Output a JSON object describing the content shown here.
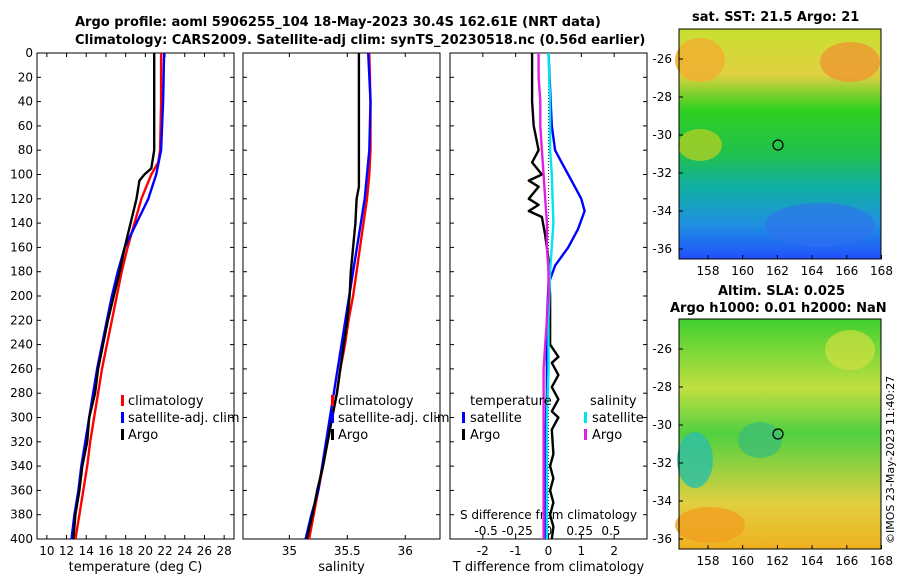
{
  "header": {
    "line1": "Argo profile: aoml 5906255_104 18-May-2023 30.4S 162.61E (NRT data)",
    "line2": "Climatology: CARS2009. Satellite-adj clim: synTS_20230518.nc (0.56d earlier)"
  },
  "maps": {
    "sst_title": "sat. SST: 21.5 Argo: 21",
    "sla_title1": "Altim. SLA: 0.025",
    "sla_title2": "Argo h1000: 0.01 h2000: NaN",
    "lat_ticks": [
      "-26",
      "-28",
      "-30",
      "-32",
      "-34",
      "-36"
    ],
    "lon_ticks": [
      "158",
      "160",
      "162",
      "164",
      "166",
      "168"
    ]
  },
  "copyright": "©IMOS 23-May-2023 11:40:27",
  "chart_data": [
    {
      "type": "line",
      "name": "temperature",
      "xlabel": "temperature (deg C)",
      "ylabel": "",
      "xlim": [
        9,
        29
      ],
      "ylim": [
        400,
        0
      ],
      "xticks": [
        10,
        12,
        14,
        16,
        18,
        20,
        22,
        24,
        26,
        28
      ],
      "yticks": [
        0,
        20,
        40,
        60,
        80,
        100,
        120,
        140,
        160,
        180,
        200,
        220,
        240,
        260,
        280,
        300,
        320,
        340,
        360,
        380,
        400
      ],
      "legend": [
        "climatology",
        "satellite-adj. clim",
        "Argo"
      ],
      "legend_colors": [
        "#ff0000",
        "#0000ff",
        "#000000"
      ],
      "series": [
        {
          "name": "climatology",
          "color": "#ff0000",
          "points": [
            [
              21.6,
              0
            ],
            [
              21.6,
              40
            ],
            [
              21.5,
              80
            ],
            [
              21.3,
              90
            ],
            [
              20.6,
              100
            ],
            [
              19.6,
              120
            ],
            [
              18.9,
              140
            ],
            [
              18.2,
              160
            ],
            [
              17.6,
              180
            ],
            [
              17.1,
              200
            ],
            [
              16.6,
              220
            ],
            [
              16.1,
              240
            ],
            [
              15.6,
              260
            ],
            [
              15.2,
              280
            ],
            [
              14.8,
              300
            ],
            [
              14.4,
              320
            ],
            [
              14.1,
              340
            ],
            [
              13.7,
              360
            ],
            [
              13.3,
              380
            ],
            [
              12.9,
              400
            ]
          ]
        },
        {
          "name": "satellite-adj. clim",
          "color": "#0000ff",
          "points": [
            [
              21.9,
              0
            ],
            [
              21.8,
              40
            ],
            [
              21.6,
              80
            ],
            [
              21.1,
              100
            ],
            [
              20.3,
              120
            ],
            [
              19.1,
              140
            ],
            [
              17.9,
              160
            ],
            [
              17.2,
              180
            ],
            [
              16.6,
              200
            ],
            [
              16.1,
              220
            ],
            [
              15.6,
              240
            ],
            [
              15.1,
              260
            ],
            [
              14.7,
              280
            ],
            [
              14.3,
              300
            ],
            [
              13.9,
              320
            ],
            [
              13.5,
              340
            ],
            [
              13.2,
              360
            ],
            [
              12.8,
              380
            ],
            [
              12.5,
              400
            ]
          ]
        },
        {
          "name": "Argo",
          "color": "#000000",
          "points": [
            [
              20.9,
              0
            ],
            [
              20.9,
              40
            ],
            [
              20.9,
              80
            ],
            [
              20.6,
              95
            ],
            [
              19.9,
              100
            ],
            [
              19.4,
              105
            ],
            [
              19.1,
              120
            ],
            [
              18.5,
              140
            ],
            [
              17.9,
              160
            ],
            [
              17.4,
              180
            ],
            [
              16.8,
              200
            ],
            [
              16.2,
              220
            ],
            [
              15.7,
              240
            ],
            [
              15.2,
              260
            ],
            [
              14.9,
              280
            ],
            [
              14.3,
              300
            ],
            [
              14.1,
              320
            ],
            [
              13.6,
              340
            ],
            [
              13.3,
              360
            ],
            [
              12.9,
              380
            ],
            [
              12.7,
              400
            ]
          ]
        }
      ]
    },
    {
      "type": "line",
      "name": "salinity",
      "xlabel": "salinity",
      "ylabel": "",
      "xlim": [
        34.6,
        36.3
      ],
      "ylim": [
        400,
        0
      ],
      "xticks": [
        35,
        35.5,
        36
      ],
      "legend": [
        "climatology",
        "satellite-adj. clim",
        "Argo"
      ],
      "legend_colors": [
        "#ff0000",
        "#0000ff",
        "#000000"
      ],
      "series": [
        {
          "name": "climatology",
          "color": "#ff0000",
          "points": [
            [
              35.69,
              0
            ],
            [
              35.7,
              40
            ],
            [
              35.7,
              80
            ],
            [
              35.69,
              100
            ],
            [
              35.67,
              120
            ],
            [
              35.64,
              140
            ],
            [
              35.61,
              160
            ],
            [
              35.58,
              180
            ],
            [
              35.55,
              200
            ],
            [
              35.51,
              220
            ],
            [
              35.48,
              240
            ],
            [
              35.44,
              260
            ],
            [
              35.41,
              280
            ],
            [
              35.37,
              300
            ],
            [
              35.33,
              320
            ],
            [
              35.29,
              340
            ],
            [
              35.25,
              360
            ],
            [
              35.21,
              380
            ],
            [
              35.17,
              400
            ]
          ]
        },
        {
          "name": "satellite-adj. clim",
          "color": "#0000ff",
          "points": [
            [
              35.68,
              0
            ],
            [
              35.7,
              40
            ],
            [
              35.69,
              80
            ],
            [
              35.65,
              120
            ],
            [
              35.6,
              150
            ],
            [
              35.55,
              180
            ],
            [
              35.5,
              210
            ],
            [
              35.45,
              240
            ],
            [
              35.4,
              270
            ],
            [
              35.35,
              300
            ],
            [
              35.3,
              330
            ],
            [
              35.25,
              360
            ],
            [
              35.19,
              380
            ],
            [
              35.14,
              400
            ]
          ]
        },
        {
          "name": "Argo",
          "color": "#000000",
          "points": [
            [
              35.6,
              0
            ],
            [
              35.6,
              40
            ],
            [
              35.6,
              80
            ],
            [
              35.6,
              110
            ],
            [
              35.58,
              120
            ],
            [
              35.57,
              140
            ],
            [
              35.55,
              160
            ],
            [
              35.53,
              180
            ],
            [
              35.52,
              200
            ],
            [
              35.5,
              220
            ],
            [
              35.47,
              240
            ],
            [
              35.44,
              260
            ],
            [
              35.41,
              280
            ],
            [
              35.37,
              300
            ],
            [
              35.33,
              320
            ],
            [
              35.29,
              340
            ],
            [
              35.24,
              360
            ],
            [
              35.2,
              380
            ],
            [
              35.15,
              400
            ]
          ]
        }
      ]
    },
    {
      "type": "line",
      "name": "differences",
      "xlabel": "T difference from climatology",
      "top_label": "S difference from climatology",
      "xlim": [
        -3,
        3
      ],
      "ylim": [
        400,
        0
      ],
      "xticks": [
        "-2",
        "-1",
        "0",
        "1",
        "2"
      ],
      "xtick_values": [
        -2,
        -1,
        0,
        1,
        2
      ],
      "sticks": [
        "-0.5",
        "-0.25",
        "0",
        "0.25",
        "0.5"
      ],
      "stick_values": [
        -1.9,
        -0.95,
        0,
        0.95,
        1.9
      ],
      "legend_left_title": "temperature",
      "legend_right_title": "salinity",
      "legend_left": [
        "satellite",
        "Argo"
      ],
      "legend_right": [
        "satellite",
        "Argo"
      ],
      "legend_colors": [
        "#0000ff",
        "#000000",
        "#00e5ee",
        "#e020e0"
      ],
      "series": [
        {
          "name": "T satellite",
          "color": "#0000ff",
          "points": [
            [
              0,
              0
            ],
            [
              0.1,
              60
            ],
            [
              0.2,
              80
            ],
            [
              0.4,
              90
            ],
            [
              0.6,
              100
            ],
            [
              0.8,
              110
            ],
            [
              1.0,
              120
            ],
            [
              1.1,
              130
            ],
            [
              0.9,
              145
            ],
            [
              0.6,
              160
            ],
            [
              0.2,
              175
            ],
            [
              0,
              190
            ],
            [
              -0.05,
              220
            ],
            [
              -0.05,
              280
            ],
            [
              -0.1,
              320
            ],
            [
              -0.1,
              360
            ],
            [
              -0.1,
              400
            ]
          ]
        },
        {
          "name": "T Argo",
          "color": "#000000",
          "points": [
            [
              -0.5,
              0
            ],
            [
              -0.5,
              40
            ],
            [
              -0.45,
              60
            ],
            [
              -0.3,
              80
            ],
            [
              -0.5,
              90
            ],
            [
              -0.2,
              100
            ],
            [
              -0.6,
              105
            ],
            [
              -0.3,
              110
            ],
            [
              -0.6,
              120
            ],
            [
              -0.3,
              125
            ],
            [
              -0.6,
              130
            ],
            [
              -0.2,
              135
            ],
            [
              -0.1,
              150
            ],
            [
              0,
              170
            ],
            [
              0.05,
              200
            ],
            [
              0.05,
              240
            ],
            [
              0.3,
              250
            ],
            [
              0.1,
              255
            ],
            [
              0.3,
              265
            ],
            [
              0.1,
              275
            ],
            [
              0.3,
              285
            ],
            [
              0.1,
              295
            ],
            [
              0.3,
              300
            ],
            [
              0.1,
              310
            ],
            [
              0.15,
              330
            ],
            [
              0.05,
              340
            ],
            [
              0.15,
              350
            ],
            [
              0.05,
              360
            ],
            [
              0.15,
              370
            ],
            [
              0.05,
              380
            ],
            [
              0.15,
              390
            ],
            [
              0.1,
              400
            ]
          ]
        },
        {
          "name": "S satellite",
          "color": "#00e5ee",
          "points": [
            [
              0,
              0
            ],
            [
              0.05,
              40
            ],
            [
              0.05,
              80
            ],
            [
              0.1,
              100
            ],
            [
              0.15,
              140
            ],
            [
              0.05,
              180
            ],
            [
              0,
              220
            ],
            [
              0,
              260
            ],
            [
              -0.05,
              300
            ],
            [
              -0.05,
              340
            ],
            [
              -0.05,
              400
            ]
          ]
        },
        {
          "name": "S Argo",
          "color": "#e020e0",
          "points": [
            [
              -0.3,
              0
            ],
            [
              -0.3,
              20
            ],
            [
              -0.25,
              40
            ],
            [
              -0.25,
              60
            ],
            [
              -0.2,
              80
            ],
            [
              -0.15,
              100
            ],
            [
              -0.1,
              120
            ],
            [
              -0.05,
              140
            ],
            [
              -0.05,
              160
            ],
            [
              0,
              180
            ],
            [
              0,
              200
            ],
            [
              -0.05,
              220
            ],
            [
              -0.1,
              240
            ],
            [
              -0.15,
              260
            ],
            [
              -0.15,
              300
            ],
            [
              -0.15,
              340
            ],
            [
              -0.15,
              380
            ],
            [
              -0.15,
              400
            ]
          ]
        }
      ]
    }
  ]
}
